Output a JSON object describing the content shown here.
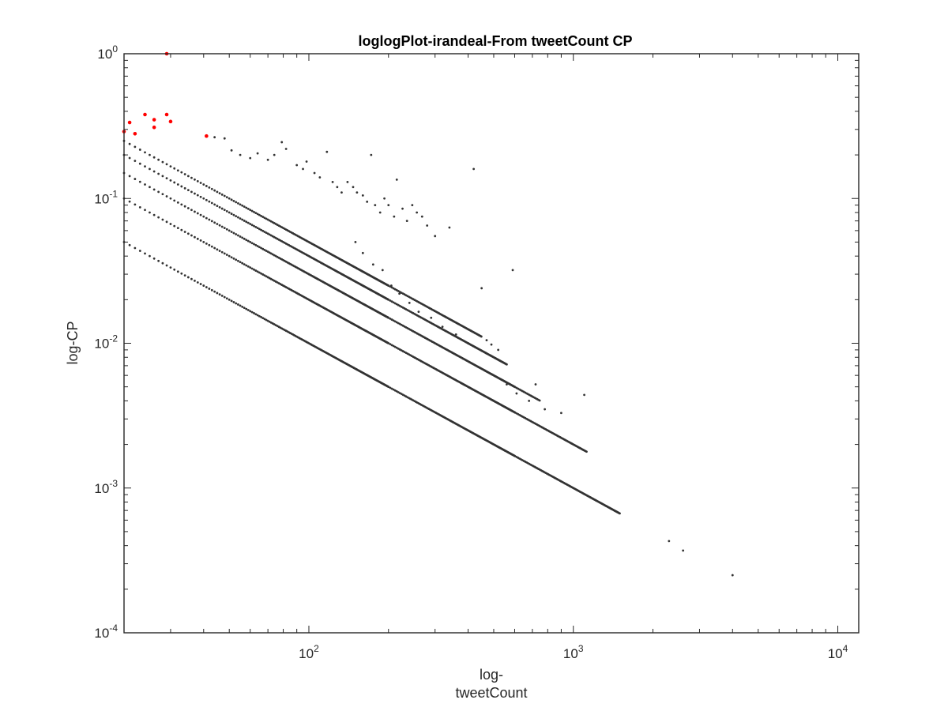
{
  "chart_data": {
    "type": "scatter",
    "title": "loglogPlot-irandeal-From tweetCount CP",
    "xlabel": [
      "log-",
      "tweetCount"
    ],
    "ylabel": "log-CP",
    "x_scale": "log",
    "y_scale": "log",
    "xlim": [
      20,
      12000
    ],
    "ylim": [
      0.0001,
      1
    ],
    "grid": false,
    "x_ticks": [
      {
        "value": 100,
        "base": "10",
        "exp": "2"
      },
      {
        "value": 1000,
        "base": "10",
        "exp": "3"
      },
      {
        "value": 10000,
        "base": "10",
        "exp": "4"
      }
    ],
    "y_ticks": [
      {
        "value": 1,
        "base": "10",
        "exp": "0"
      },
      {
        "value": 0.1,
        "base": "10",
        "exp": "-1"
      },
      {
        "value": 0.01,
        "base": "10",
        "exp": "-2"
      },
      {
        "value": 0.001,
        "base": "10",
        "exp": "-3"
      },
      {
        "value": 0.0001,
        "base": "10",
        "exp": "-4"
      }
    ],
    "colors": {
      "main": "#333333",
      "highlight": "#ff0000"
    },
    "series": [
      {
        "color": "#333333",
        "lines_k_over_x": [
          1,
          2,
          3,
          4,
          5
        ],
        "lines_x_range": [
          20,
          1500
        ],
        "points": [
          [
            44,
            0.265
          ],
          [
            48,
            0.26
          ],
          [
            51,
            0.215
          ],
          [
            55,
            0.2
          ],
          [
            60,
            0.19
          ],
          [
            64,
            0.205
          ],
          [
            70,
            0.185
          ],
          [
            74,
            0.2
          ],
          [
            79,
            0.245
          ],
          [
            82,
            0.22
          ],
          [
            90,
            0.17
          ],
          [
            95,
            0.16
          ],
          [
            98,
            0.18
          ],
          [
            105,
            0.15
          ],
          [
            110,
            0.14
          ],
          [
            117,
            0.21
          ],
          [
            123,
            0.13
          ],
          [
            128,
            0.12
          ],
          [
            133,
            0.11
          ],
          [
            140,
            0.13
          ],
          [
            147,
            0.12
          ],
          [
            152,
            0.11
          ],
          [
            160,
            0.105
          ],
          [
            166,
            0.095
          ],
          [
            172,
            0.2
          ],
          [
            178,
            0.09
          ],
          [
            186,
            0.08
          ],
          [
            193,
            0.1
          ],
          [
            200,
            0.09
          ],
          [
            210,
            0.075
          ],
          [
            215,
            0.135
          ],
          [
            226,
            0.085
          ],
          [
            235,
            0.07
          ],
          [
            246,
            0.09
          ],
          [
            256,
            0.08
          ],
          [
            268,
            0.075
          ],
          [
            280,
            0.065
          ],
          [
            300,
            0.055
          ],
          [
            340,
            0.063
          ],
          [
            420,
            0.16
          ],
          [
            450,
            0.024
          ],
          [
            470,
            0.0105
          ],
          [
            490,
            0.0098
          ],
          [
            520,
            0.009
          ],
          [
            560,
            0.0052
          ],
          [
            590,
            0.032
          ],
          [
            610,
            0.0045
          ],
          [
            680,
            0.004
          ],
          [
            720,
            0.0052
          ],
          [
            780,
            0.0035
          ],
          [
            900,
            0.0033
          ],
          [
            1100,
            0.0044
          ],
          [
            2300,
            0.00043
          ],
          [
            2600,
            0.00037
          ],
          [
            4000,
            0.00025
          ],
          [
            150,
            0.05
          ],
          [
            160,
            0.042
          ],
          [
            175,
            0.035
          ],
          [
            190,
            0.032
          ],
          [
            205,
            0.025
          ],
          [
            220,
            0.022
          ],
          [
            240,
            0.019
          ],
          [
            260,
            0.0165
          ],
          [
            290,
            0.015
          ],
          [
            320,
            0.013
          ],
          [
            360,
            0.0115
          ],
          [
            400,
            0.01
          ]
        ]
      },
      {
        "color": "#ff0000",
        "points": [
          [
            20,
            0.29
          ],
          [
            21,
            0.335
          ],
          [
            22,
            0.28
          ],
          [
            24,
            0.38
          ],
          [
            26,
            0.35
          ],
          [
            26,
            0.31
          ],
          [
            29,
            1.0
          ],
          [
            29,
            0.38
          ],
          [
            30,
            0.34
          ],
          [
            41,
            0.27
          ]
        ]
      }
    ]
  }
}
